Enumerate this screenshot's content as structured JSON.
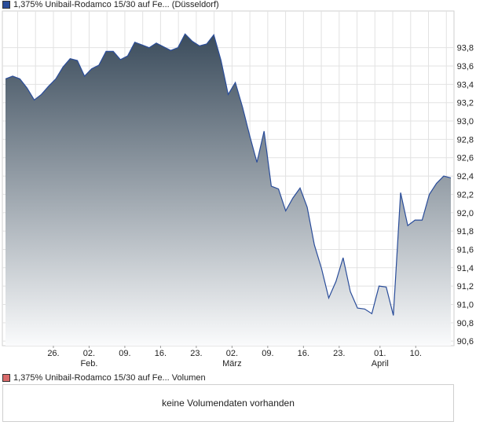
{
  "legend": {
    "price_label": "1,375% Unibail-Rodamco 15/30 auf Fe... (Düsseldorf)",
    "price_color": "#2a4d9a",
    "volume_label": "1,375% Unibail-Rodamco 15/30 auf Fe... Volumen",
    "volume_color": "#d96a6a"
  },
  "volume_panel": {
    "message": "keine Volumendaten vorhanden"
  },
  "chart_data": {
    "type": "area",
    "title": "",
    "xlabel": "",
    "ylabel": "",
    "ylim": [
      90.55,
      94.2
    ],
    "y_ticks": [
      "93,8",
      "93,6",
      "93,4",
      "93,2",
      "93,0",
      "92,8",
      "92,6",
      "92,4",
      "92,2",
      "92,0",
      "91,8",
      "91,6",
      "91,4",
      "91,2",
      "91,0",
      "90,8",
      "90,6"
    ],
    "y_tick_values": [
      93.8,
      93.6,
      93.4,
      93.2,
      93.0,
      92.8,
      92.6,
      92.4,
      92.2,
      92.0,
      91.8,
      91.6,
      91.4,
      91.2,
      91.0,
      90.8,
      90.6
    ],
    "x_ticks": [
      {
        "day": "26.",
        "month": "",
        "pos": 10
      },
      {
        "day": "02.",
        "month": "Feb.",
        "pos": 17
      },
      {
        "day": "09.",
        "month": "",
        "pos": 24
      },
      {
        "day": "16.",
        "month": "",
        "pos": 31
      },
      {
        "day": "23.",
        "month": "",
        "pos": 38
      },
      {
        "day": "02.",
        "month": "März",
        "pos": 45
      },
      {
        "day": "09.",
        "month": "",
        "pos": 52
      },
      {
        "day": "16.",
        "month": "",
        "pos": 59
      },
      {
        "day": "23.",
        "month": "",
        "pos": 66
      },
      {
        "day": "01.",
        "month": "April",
        "pos": 74
      },
      {
        "day": "10.",
        "month": "",
        "pos": 81
      }
    ],
    "x_range": [
      0,
      88.5
    ],
    "series": [
      {
        "values": [
          93.46,
          93.49,
          93.46,
          93.36,
          93.23,
          93.29,
          93.38,
          93.46,
          93.59,
          93.68,
          93.66,
          93.49,
          93.57,
          93.61,
          93.76,
          93.76,
          93.67,
          93.71,
          93.86,
          93.83,
          93.8,
          93.85,
          93.81,
          93.77,
          93.8,
          93.95,
          93.87,
          93.82,
          93.84,
          93.94,
          93.66,
          93.29,
          93.42,
          93.15,
          92.84,
          92.55,
          92.89,
          92.29,
          92.26,
          92.02,
          92.16,
          92.27,
          92.06,
          91.65,
          91.39,
          91.07,
          91.25,
          91.51,
          91.14,
          90.96,
          90.95,
          90.9,
          91.2,
          91.19,
          90.88,
          92.22,
          91.86,
          91.92,
          91.92,
          92.2,
          92.32,
          92.4,
          92.38
        ]
      }
    ],
    "grid": true,
    "legend_position": "top-left"
  }
}
